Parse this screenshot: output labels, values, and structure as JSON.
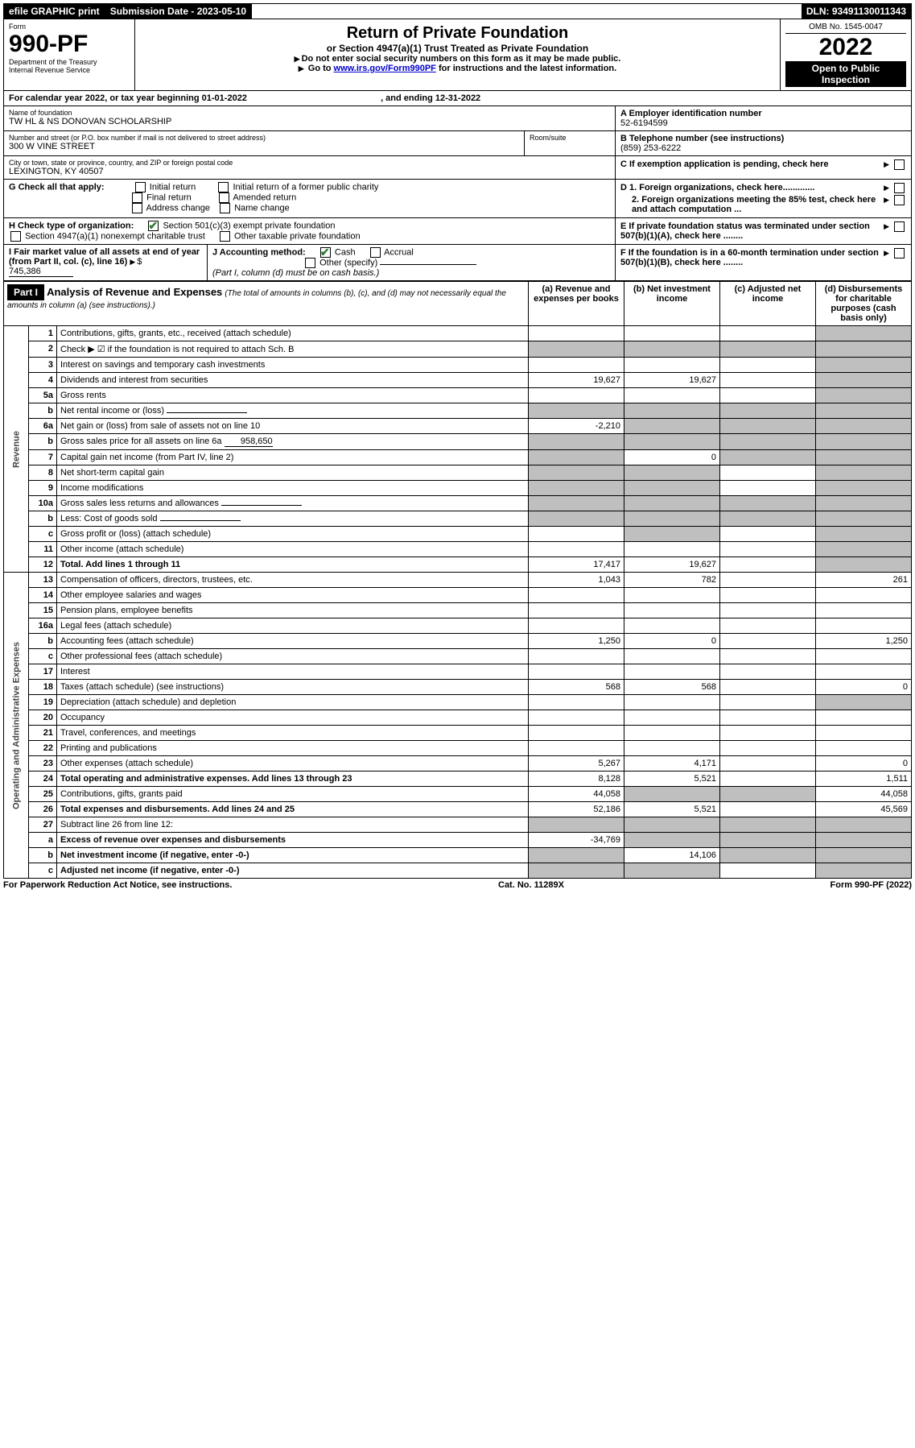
{
  "topbar": {
    "efile": "efile GRAPHIC print",
    "submission_label": "Submission Date - 2023-05-10",
    "dln": "DLN: 93491130011343"
  },
  "header": {
    "form_word": "Form",
    "form_number": "990-PF",
    "dept": "Department of the Treasury",
    "irs": "Internal Revenue Service",
    "title": "Return of Private Foundation",
    "subtitle": "or Section 4947(a)(1) Trust Treated as Private Foundation",
    "note1": "Do not enter social security numbers on this form as it may be made public.",
    "note2_prefix": "Go to ",
    "note2_link": "www.irs.gov/Form990PF",
    "note2_suffix": " for instructions and the latest information.",
    "omb": "OMB No. 1545-0047",
    "year": "2022",
    "open": "Open to Public Inspection"
  },
  "period": {
    "text_prefix": "For calendar year 2022, or tax year beginning ",
    "begin": "01-01-2022",
    "text_mid": " , and ending ",
    "end": "12-31-2022"
  },
  "id": {
    "name_label": "Name of foundation",
    "name": "TW HL & NS DONOVAN SCHOLARSHIP",
    "ein_label": "A Employer identification number",
    "ein": "52-6194599",
    "addr_label": "Number and street (or P.O. box number if mail is not delivered to street address)",
    "addr": "300 W VINE STREET",
    "room_label": "Room/suite",
    "phone_label": "B Telephone number (see instructions)",
    "phone": "(859) 253-6222",
    "city_label": "City or town, state or province, country, and ZIP or foreign postal code",
    "city": "LEXINGTON, KY  40507",
    "c_label": "C If exemption application is pending, check here"
  },
  "g": {
    "label": "G Check all that apply:",
    "initial": "Initial return",
    "initial_former": "Initial return of a former public charity",
    "final": "Final return",
    "amended": "Amended return",
    "address": "Address change",
    "name_change": "Name change"
  },
  "d": {
    "d1": "D 1. Foreign organizations, check here.............",
    "d2": "2. Foreign organizations meeting the 85% test, check here and attach computation ...",
    "e": "E If private foundation status was terminated under section 507(b)(1)(A), check here ........",
    "f": "F If the foundation is in a 60-month termination under section 507(b)(1)(B), check here ........"
  },
  "h": {
    "label": "H Check type of organization:",
    "opt1": "Section 501(c)(3) exempt private foundation",
    "opt2": "Section 4947(a)(1) nonexempt charitable trust",
    "opt3": "Other taxable private foundation"
  },
  "i": {
    "label": "I Fair market value of all assets at end of year (from Part II, col. (c), line 16)",
    "value": "745,386"
  },
  "j": {
    "label": "J Accounting method:",
    "cash": "Cash",
    "accrual": "Accrual",
    "other": "Other (specify)",
    "note": "(Part I, column (d) must be on cash basis.)"
  },
  "part1": {
    "label": "Part I",
    "title": "Analysis of Revenue and Expenses",
    "title_note": "(The total of amounts in columns (b), (c), and (d) may not necessarily equal the amounts in column (a) (see instructions).)",
    "cols": {
      "a": "(a) Revenue and expenses per books",
      "b": "(b) Net investment income",
      "c": "(c) Adjusted net income",
      "d": "(d) Disbursements for charitable purposes (cash basis only)"
    }
  },
  "vert": {
    "revenue": "Revenue",
    "expenses": "Operating and Administrative Expenses"
  },
  "lines": [
    {
      "n": "1",
      "d": "Contributions, gifts, grants, etc., received (attach schedule)",
      "a": "",
      "b": "",
      "c": "",
      "dd": "",
      "shade_d": true
    },
    {
      "n": "2",
      "d": "Check ▶ ☑ if the foundation is not required to attach Sch. B",
      "a": "",
      "b": "",
      "c": "",
      "dd": "",
      "shade_all": true,
      "bold_not": true
    },
    {
      "n": "3",
      "d": "Interest on savings and temporary cash investments",
      "a": "",
      "b": "",
      "c": "",
      "dd": "",
      "shade_d": true
    },
    {
      "n": "4",
      "d": "Dividends and interest from securities",
      "a": "19,627",
      "b": "19,627",
      "c": "",
      "dd": "",
      "shade_d": true
    },
    {
      "n": "5a",
      "d": "Gross rents",
      "a": "",
      "b": "",
      "c": "",
      "dd": "",
      "shade_d": true
    },
    {
      "n": "b",
      "d": "Net rental income or (loss)",
      "a": "",
      "b": "",
      "c": "",
      "dd": "",
      "shade_all": true,
      "inline_blank": true
    },
    {
      "n": "6a",
      "d": "Net gain or (loss) from sale of assets not on line 10",
      "a": "-2,210",
      "b": "",
      "c": "",
      "dd": "",
      "shade_bcd": true
    },
    {
      "n": "b",
      "d": "Gross sales price for all assets on line 6a",
      "a": "",
      "b": "",
      "c": "",
      "dd": "",
      "inline_val": "958,650",
      "shade_all": true
    },
    {
      "n": "7",
      "d": "Capital gain net income (from Part IV, line 2)",
      "a": "",
      "b": "0",
      "c": "",
      "dd": "",
      "shade_a": true,
      "shade_cd": true
    },
    {
      "n": "8",
      "d": "Net short-term capital gain",
      "a": "",
      "b": "",
      "c": "",
      "dd": "",
      "shade_ab": true,
      "shade_d": true
    },
    {
      "n": "9",
      "d": "Income modifications",
      "a": "",
      "b": "",
      "c": "",
      "dd": "",
      "shade_ab": true,
      "shade_d": true
    },
    {
      "n": "10a",
      "d": "Gross sales less returns and allowances",
      "a": "",
      "b": "",
      "c": "",
      "dd": "",
      "shade_all": true,
      "inline_blank": true
    },
    {
      "n": "b",
      "d": "Less: Cost of goods sold",
      "a": "",
      "b": "",
      "c": "",
      "dd": "",
      "shade_all": true,
      "inline_blank": true
    },
    {
      "n": "c",
      "d": "Gross profit or (loss) (attach schedule)",
      "a": "",
      "b": "",
      "c": "",
      "dd": "",
      "shade_b": true,
      "shade_d": true
    },
    {
      "n": "11",
      "d": "Other income (attach schedule)",
      "a": "",
      "b": "",
      "c": "",
      "dd": "",
      "shade_d": true
    },
    {
      "n": "12",
      "d": "Total. Add lines 1 through 11",
      "a": "17,417",
      "b": "19,627",
      "c": "",
      "dd": "",
      "bold": true,
      "shade_d": true
    },
    {
      "n": "13",
      "d": "Compensation of officers, directors, trustees, etc.",
      "a": "1,043",
      "b": "782",
      "c": "",
      "dd": "261"
    },
    {
      "n": "14",
      "d": "Other employee salaries and wages",
      "a": "",
      "b": "",
      "c": "",
      "dd": ""
    },
    {
      "n": "15",
      "d": "Pension plans, employee benefits",
      "a": "",
      "b": "",
      "c": "",
      "dd": ""
    },
    {
      "n": "16a",
      "d": "Legal fees (attach schedule)",
      "a": "",
      "b": "",
      "c": "",
      "dd": ""
    },
    {
      "n": "b",
      "d": "Accounting fees (attach schedule)",
      "a": "1,250",
      "b": "0",
      "c": "",
      "dd": "1,250"
    },
    {
      "n": "c",
      "d": "Other professional fees (attach schedule)",
      "a": "",
      "b": "",
      "c": "",
      "dd": ""
    },
    {
      "n": "17",
      "d": "Interest",
      "a": "",
      "b": "",
      "c": "",
      "dd": ""
    },
    {
      "n": "18",
      "d": "Taxes (attach schedule) (see instructions)",
      "a": "568",
      "b": "568",
      "c": "",
      "dd": "0"
    },
    {
      "n": "19",
      "d": "Depreciation (attach schedule) and depletion",
      "a": "",
      "b": "",
      "c": "",
      "dd": "",
      "shade_d": true
    },
    {
      "n": "20",
      "d": "Occupancy",
      "a": "",
      "b": "",
      "c": "",
      "dd": ""
    },
    {
      "n": "21",
      "d": "Travel, conferences, and meetings",
      "a": "",
      "b": "",
      "c": "",
      "dd": ""
    },
    {
      "n": "22",
      "d": "Printing and publications",
      "a": "",
      "b": "",
      "c": "",
      "dd": ""
    },
    {
      "n": "23",
      "d": "Other expenses (attach schedule)",
      "a": "5,267",
      "b": "4,171",
      "c": "",
      "dd": "0"
    },
    {
      "n": "24",
      "d": "Total operating and administrative expenses. Add lines 13 through 23",
      "a": "8,128",
      "b": "5,521",
      "c": "",
      "dd": "1,511",
      "bold": true
    },
    {
      "n": "25",
      "d": "Contributions, gifts, grants paid",
      "a": "44,058",
      "b": "",
      "c": "",
      "dd": "44,058",
      "shade_bc": true
    },
    {
      "n": "26",
      "d": "Total expenses and disbursements. Add lines 24 and 25",
      "a": "52,186",
      "b": "5,521",
      "c": "",
      "dd": "45,569",
      "bold": true
    },
    {
      "n": "27",
      "d": "Subtract line 26 from line 12:",
      "a": "",
      "b": "",
      "c": "",
      "dd": "",
      "shade_all": true
    },
    {
      "n": "a",
      "d": "Excess of revenue over expenses and disbursements",
      "a": "-34,769",
      "b": "",
      "c": "",
      "dd": "",
      "bold": true,
      "shade_bcd": true
    },
    {
      "n": "b",
      "d": "Net investment income (if negative, enter -0-)",
      "a": "",
      "b": "14,106",
      "c": "",
      "dd": "",
      "bold": true,
      "shade_a": true,
      "shade_cd": true
    },
    {
      "n": "c",
      "d": "Adjusted net income (if negative, enter -0-)",
      "a": "",
      "b": "",
      "c": "",
      "dd": "",
      "bold": true,
      "shade_ab": true,
      "shade_d": true
    }
  ],
  "footer": {
    "left": "For Paperwork Reduction Act Notice, see instructions.",
    "mid": "Cat. No. 11289X",
    "right": "Form 990-PF (2022)"
  }
}
